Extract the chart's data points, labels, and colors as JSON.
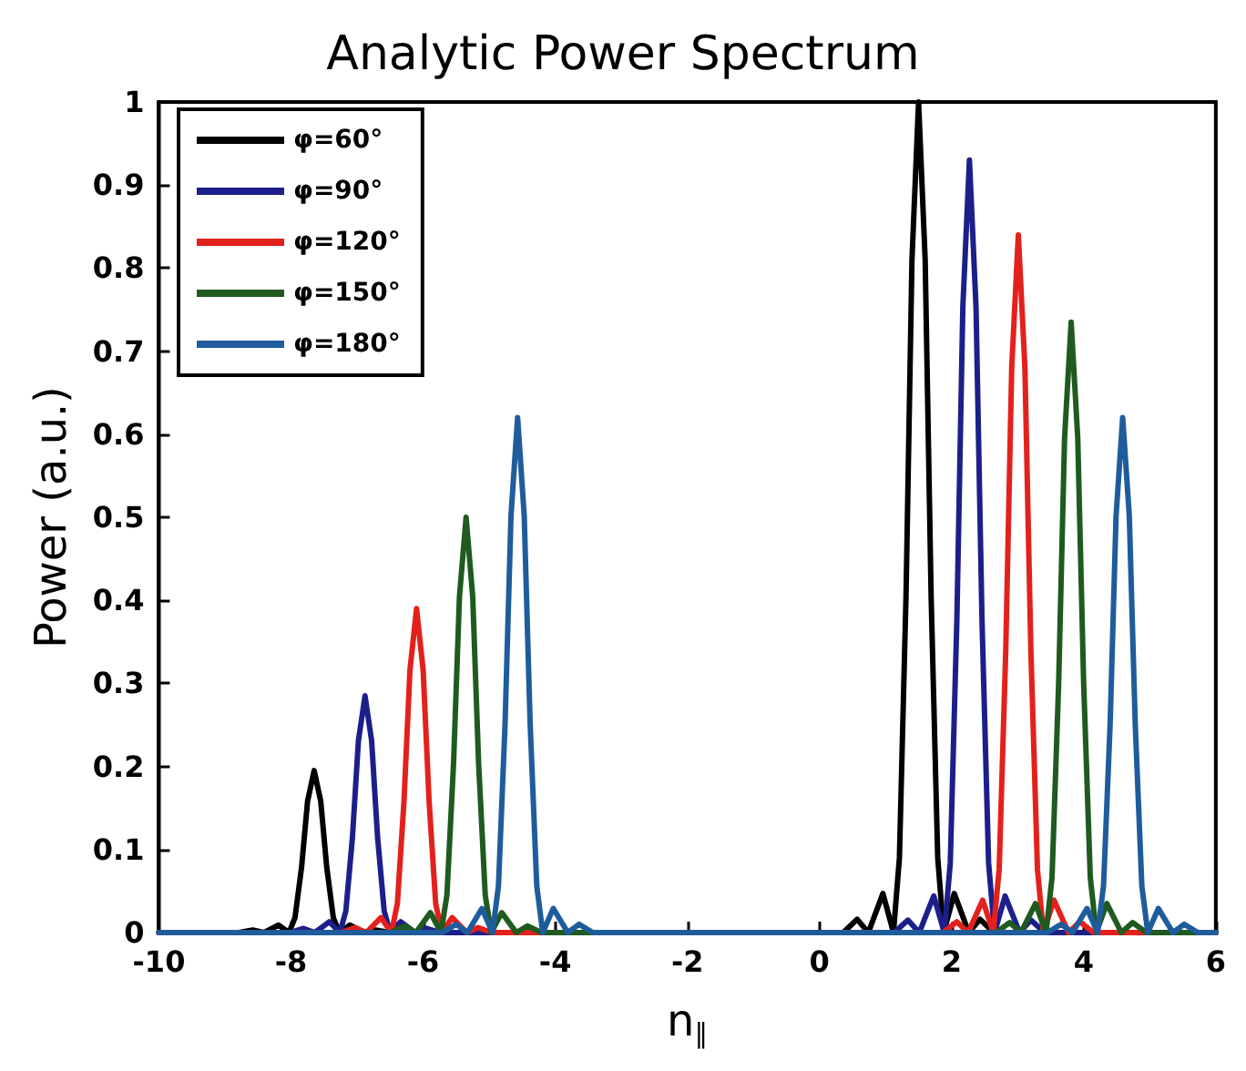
{
  "chart_data": {
    "type": "line",
    "title": "Analytic Power Spectrum",
    "xlabel": "n$_{∥}$",
    "ylabel": "Power (a.u.)",
    "xlim": [
      -10,
      6
    ],
    "xticks": [
      -10,
      -8,
      -6,
      -4,
      -2,
      0,
      2,
      4,
      6
    ],
    "ylim": [
      0,
      1
    ],
    "yticks": [
      0,
      0.1,
      0.2,
      0.3,
      0.4,
      0.5,
      0.6,
      0.7,
      0.8,
      0.9,
      1
    ],
    "grid": false,
    "legend": "top left",
    "marker": "none",
    "line_style": "solid",
    "series": [
      {
        "name": "φ=60°",
        "color": "#000000",
        "x": [
          -10,
          -8.79,
          -8.58,
          -8.41,
          -8.19,
          -8.03,
          -7.94,
          -7.84,
          -7.75,
          -7.65,
          -7.55,
          -7.46,
          -7.36,
          -7.27,
          -7.11,
          -6.89,
          -6.72,
          -6.51,
          0.36,
          0.57,
          0.74,
          0.96,
          1.12,
          1.21,
          1.31,
          1.4,
          1.5,
          1.6,
          1.69,
          1.79,
          1.88,
          2.04,
          2.26,
          2.43,
          2.64,
          6
        ],
        "values": [
          0,
          0,
          0.003,
          0,
          0.009,
          0,
          0.018,
          0.079,
          0.158,
          0.195,
          0.158,
          0.079,
          0.018,
          0,
          0.009,
          0,
          0.003,
          0,
          0,
          0.016,
          0,
          0.047,
          0,
          0.09,
          0.405,
          0.81,
          1,
          0.81,
          0.405,
          0.09,
          0,
          0.047,
          0,
          0.016,
          0,
          0
        ]
      },
      {
        "name": "φ=90°",
        "color": "#1c1f8a",
        "x": [
          -10,
          -8.02,
          -7.81,
          -7.64,
          -7.42,
          -7.26,
          -7.17,
          -7.07,
          -6.98,
          -6.88,
          -6.78,
          -6.69,
          -6.59,
          -6.5,
          -6.34,
          -6.12,
          -5.95,
          -5.74,
          1.13,
          1.34,
          1.51,
          1.73,
          1.89,
          1.98,
          2.08,
          2.17,
          2.27,
          2.37,
          2.46,
          2.56,
          2.65,
          2.81,
          3.03,
          3.2,
          3.41,
          6
        ],
        "values": [
          0,
          0,
          0.005,
          0,
          0.013,
          0,
          0.026,
          0.115,
          0.231,
          0.285,
          0.231,
          0.115,
          0.026,
          0,
          0.013,
          0,
          0.005,
          0,
          0,
          0.015,
          0,
          0.044,
          0,
          0.084,
          0.377,
          0.753,
          0.93,
          0.753,
          0.377,
          0.084,
          0,
          0.044,
          0,
          0.015,
          0,
          0
        ]
      },
      {
        "name": "φ=120°",
        "color": "#e3211c",
        "x": [
          -10,
          -7.24,
          -7.03,
          -6.86,
          -6.64,
          -6.48,
          -6.39,
          -6.29,
          -6.2,
          -6.1,
          -6,
          -5.91,
          -5.81,
          -5.72,
          -5.56,
          -5.34,
          -5.17,
          -4.96,
          1.87,
          2.08,
          2.25,
          2.47,
          2.63,
          2.72,
          2.82,
          2.91,
          3.01,
          3.11,
          3.2,
          3.3,
          3.39,
          3.55,
          3.77,
          3.94,
          4.15,
          6
        ],
        "values": [
          0,
          0,
          0.006,
          0,
          0.018,
          0,
          0.035,
          0.158,
          0.316,
          0.39,
          0.316,
          0.158,
          0.035,
          0,
          0.018,
          0,
          0.006,
          0,
          0,
          0.013,
          0,
          0.039,
          0,
          0.076,
          0.34,
          0.68,
          0.84,
          0.68,
          0.34,
          0.076,
          0,
          0.039,
          0,
          0.013,
          0,
          0
        ]
      },
      {
        "name": "φ=150°",
        "color": "#1f5a1f",
        "x": [
          -10,
          -6.49,
          -6.28,
          -6.11,
          -5.89,
          -5.73,
          -5.64,
          -5.54,
          -5.45,
          -5.35,
          -5.25,
          -5.16,
          -5.06,
          -4.97,
          -4.81,
          -4.59,
          -4.42,
          -4.21,
          2.67,
          2.88,
          3.05,
          3.27,
          3.43,
          3.52,
          3.62,
          3.71,
          3.81,
          3.91,
          4,
          4.1,
          4.19,
          4.35,
          4.57,
          4.74,
          4.95,
          6
        ],
        "values": [
          0,
          0,
          0.008,
          0,
          0.024,
          0,
          0.045,
          0.203,
          0.405,
          0.5,
          0.405,
          0.203,
          0.045,
          0,
          0.024,
          0,
          0.008,
          0,
          0,
          0.012,
          0,
          0.035,
          0,
          0.066,
          0.298,
          0.595,
          0.735,
          0.595,
          0.298,
          0.066,
          0,
          0.035,
          0,
          0.012,
          0,
          0
        ]
      },
      {
        "name": "φ=180°",
        "color": "#1f5c9c",
        "x": [
          -10,
          -5.71,
          -5.5,
          -5.33,
          -5.11,
          -4.95,
          -4.86,
          -4.76,
          -4.67,
          -4.57,
          -4.47,
          -4.38,
          -4.28,
          -4.19,
          -4.03,
          -3.81,
          -3.64,
          -3.43,
          3.45,
          3.66,
          3.83,
          4.05,
          4.21,
          4.3,
          4.4,
          4.49,
          4.59,
          4.69,
          4.78,
          4.88,
          4.97,
          5.13,
          5.35,
          5.52,
          5.73,
          6
        ],
        "values": [
          0,
          0,
          0.01,
          0,
          0.029,
          0,
          0.056,
          0.251,
          0.502,
          0.62,
          0.502,
          0.251,
          0.056,
          0,
          0.029,
          0,
          0.01,
          0,
          0,
          0.01,
          0,
          0.029,
          0,
          0.056,
          0.251,
          0.502,
          0.62,
          0.502,
          0.251,
          0.056,
          0,
          0.029,
          0,
          0.01,
          0,
          0
        ]
      }
    ]
  }
}
